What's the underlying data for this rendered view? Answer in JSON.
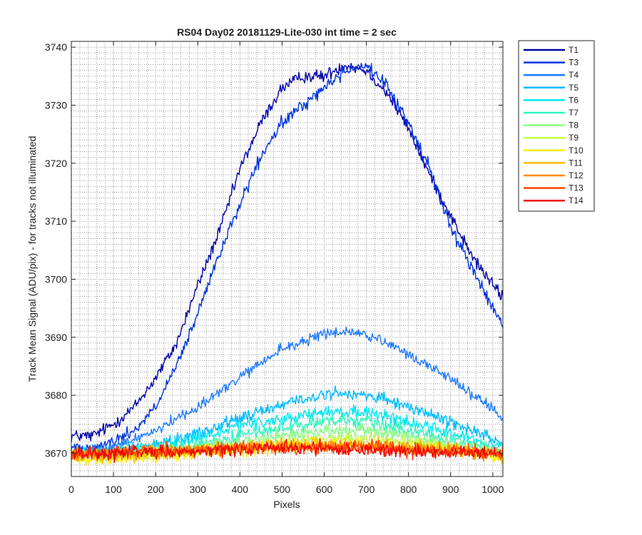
{
  "chart_data": {
    "type": "line",
    "title": "RS04 Day02 20181129-Lite-030 int time = 2 sec",
    "xlabel": "Pixels",
    "ylabel": "Track Mean Signal (ADU/pix) - for tracks not illuminated",
    "xlim": [
      0,
      1024
    ],
    "ylim": [
      3666,
      3741
    ],
    "xticks": [
      0,
      100,
      200,
      300,
      400,
      500,
      600,
      700,
      800,
      900,
      1000
    ],
    "yticks": [
      3670,
      3680,
      3690,
      3700,
      3710,
      3720,
      3730,
      3740
    ],
    "grid": true,
    "minor_grid": true,
    "legend_position": "outside-top-right",
    "series": [
      {
        "name": "T1",
        "color": "#0000aa",
        "x": [
          0,
          50,
          100,
          150,
          200,
          250,
          300,
          350,
          400,
          450,
          500,
          550,
          600,
          650,
          700,
          750,
          800,
          850,
          900,
          950,
          1000,
          1024
        ],
        "y": [
          3673,
          3673,
          3675,
          3678,
          3683,
          3689,
          3699,
          3708,
          3719,
          3727,
          3733,
          3735,
          3735,
          3737,
          3736,
          3732,
          3726,
          3718,
          3711,
          3704,
          3699,
          3697
        ],
        "noise": 0.9
      },
      {
        "name": "T3",
        "color": "#0033dd",
        "x": [
          0,
          50,
          100,
          150,
          200,
          250,
          300,
          350,
          400,
          450,
          500,
          550,
          600,
          650,
          700,
          750,
          800,
          850,
          900,
          950,
          1000,
          1024
        ],
        "y": [
          3671,
          3671,
          3672,
          3674,
          3678,
          3685,
          3694,
          3704,
          3713,
          3721,
          3727,
          3730,
          3733,
          3736,
          3737,
          3733,
          3727,
          3719,
          3709,
          3702,
          3695,
          3692
        ],
        "noise": 0.9
      },
      {
        "name": "T4",
        "color": "#1f7aff",
        "x": [
          0,
          100,
          200,
          300,
          400,
          500,
          600,
          650,
          700,
          800,
          900,
          1000,
          1024
        ],
        "y": [
          3670,
          3671,
          3674,
          3678,
          3683,
          3688,
          3690.5,
          3691,
          3690.5,
          3687,
          3683,
          3677.5,
          3676
        ],
        "noise": 0.8
      },
      {
        "name": "T5",
        "color": "#00bbff",
        "x": [
          0,
          100,
          200,
          300,
          400,
          500,
          600,
          650,
          700,
          800,
          900,
          1000,
          1024
        ],
        "y": [
          3670,
          3670.5,
          3671.5,
          3673.5,
          3676,
          3678.5,
          3680,
          3680.5,
          3680,
          3678,
          3675.5,
          3672.5,
          3672
        ],
        "noise": 0.9
      },
      {
        "name": "T6",
        "color": "#00e8f0",
        "x": [
          0,
          100,
          200,
          300,
          400,
          500,
          600,
          700,
          800,
          900,
          1000,
          1024
        ],
        "y": [
          3670,
          3670,
          3671,
          3672.5,
          3674.5,
          3676,
          3677,
          3677,
          3675.5,
          3673.5,
          3671.5,
          3671
        ],
        "noise": 0.9
      },
      {
        "name": "T7",
        "color": "#33f5c0",
        "x": [
          0,
          100,
          200,
          300,
          400,
          500,
          600,
          700,
          800,
          900,
          1000,
          1024
        ],
        "y": [
          3670,
          3670,
          3670.5,
          3671.5,
          3673,
          3674.5,
          3675.5,
          3675.5,
          3674,
          3672.5,
          3671,
          3670.5
        ],
        "noise": 0.9
      },
      {
        "name": "T8",
        "color": "#88ff88",
        "x": [
          0,
          100,
          200,
          300,
          400,
          500,
          600,
          700,
          800,
          900,
          1000,
          1024
        ],
        "y": [
          3670,
          3670,
          3670.5,
          3671,
          3672,
          3673,
          3674,
          3674,
          3673,
          3671.5,
          3670.5,
          3670
        ],
        "noise": 0.9
      },
      {
        "name": "T9",
        "color": "#c0ff40",
        "x": [
          0,
          100,
          200,
          300,
          400,
          500,
          600,
          700,
          800,
          900,
          1000,
          1024
        ],
        "y": [
          3669.5,
          3669.5,
          3670,
          3670.5,
          3671,
          3672,
          3672.5,
          3672.5,
          3672,
          3671,
          3670,
          3669.5
        ],
        "noise": 0.9
      },
      {
        "name": "T10",
        "color": "#ffee00",
        "x": [
          0,
          100,
          200,
          300,
          400,
          500,
          600,
          700,
          800,
          900,
          1000,
          1024
        ],
        "y": [
          3669,
          3669,
          3669.5,
          3670,
          3670.5,
          3671,
          3671.5,
          3671.5,
          3671,
          3670.5,
          3669.5,
          3669
        ],
        "noise": 0.9
      },
      {
        "name": "T11",
        "color": "#ffbb00",
        "x": [
          0,
          100,
          200,
          300,
          400,
          500,
          600,
          700,
          800,
          900,
          1000,
          1024
        ],
        "y": [
          3669.5,
          3669.5,
          3670,
          3670.5,
          3671,
          3671.5,
          3671.5,
          3671.5,
          3671,
          3670.5,
          3670,
          3669.5
        ],
        "noise": 1.0
      },
      {
        "name": "T12",
        "color": "#ff8800",
        "x": [
          0,
          100,
          200,
          300,
          400,
          500,
          600,
          700,
          800,
          900,
          1000,
          1024
        ],
        "y": [
          3670,
          3670,
          3670.5,
          3670.5,
          3671,
          3671,
          3671,
          3671,
          3671,
          3670.5,
          3670,
          3670
        ],
        "noise": 1.0
      },
      {
        "name": "T13",
        "color": "#ff4400",
        "x": [
          0,
          100,
          200,
          300,
          400,
          500,
          600,
          700,
          800,
          900,
          1000,
          1024
        ],
        "y": [
          3670,
          3670,
          3670.5,
          3670.5,
          3671,
          3671,
          3671,
          3671,
          3670.5,
          3670.5,
          3670,
          3670
        ],
        "noise": 1.0
      },
      {
        "name": "T14",
        "color": "#ee0000",
        "x": [
          0,
          100,
          200,
          300,
          400,
          500,
          600,
          700,
          800,
          900,
          1000,
          1024
        ],
        "y": [
          3670,
          3670,
          3670,
          3670.5,
          3670.5,
          3671,
          3671,
          3670.5,
          3670.5,
          3670,
          3670,
          3670
        ],
        "noise": 1.0
      }
    ]
  }
}
